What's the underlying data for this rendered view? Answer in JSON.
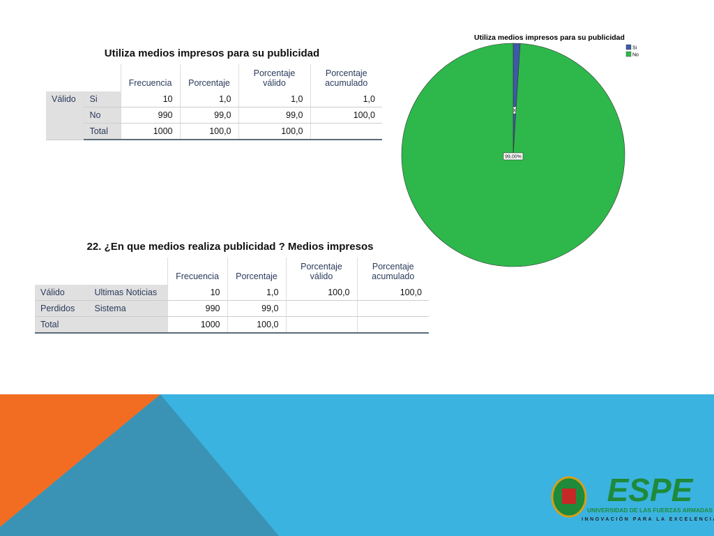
{
  "table1": {
    "title": "Utiliza medios impresos para su publicidad",
    "headers": [
      "Frecuencia",
      "Porcentaje",
      "Porcentaje válido",
      "Porcentaje acumulado"
    ],
    "group": "Válido",
    "rows": [
      {
        "label": "Si",
        "cells": [
          "10",
          "1,0",
          "1,0",
          "1,0"
        ]
      },
      {
        "label": "No",
        "cells": [
          "990",
          "99,0",
          "99,0",
          "100,0"
        ]
      },
      {
        "label": "Total",
        "cells": [
          "1000",
          "100,0",
          "100,0"
        ]
      }
    ]
  },
  "table2": {
    "title": "22. ¿En que medios realiza publicidad ? Medios impresos",
    "headers": [
      "Frecuencia",
      "Porcentaje",
      "Porcentaje válido",
      "Porcentaje acumulado"
    ],
    "rows": [
      {
        "group": "Válido",
        "label": "Ultimas Noticias",
        "cells": [
          "10",
          "1,0",
          "100,0",
          "100,0"
        ]
      },
      {
        "group": "Perdidos",
        "label": "Sistema",
        "cells": [
          "990",
          "99,0"
        ]
      },
      {
        "group": "Total",
        "cells": [
          "1000",
          "100,0"
        ]
      }
    ]
  },
  "chart_data": {
    "type": "pie",
    "title": "Utiliza medios impresos para su publicidad",
    "categories": [
      "Si",
      "No"
    ],
    "values": [
      1,
      99
    ],
    "value_labels": [
      "1,00%",
      "99,00%"
    ],
    "colors": [
      "#3d5aa8",
      "#2eb84b"
    ],
    "legend": "top-right"
  },
  "logo": {
    "name": "ESPE",
    "line1": "UNIVERSIDAD DE LAS FUERZAS ARMADAS",
    "line2": "INNOVACIÓN PARA LA EXCELENCIA"
  }
}
